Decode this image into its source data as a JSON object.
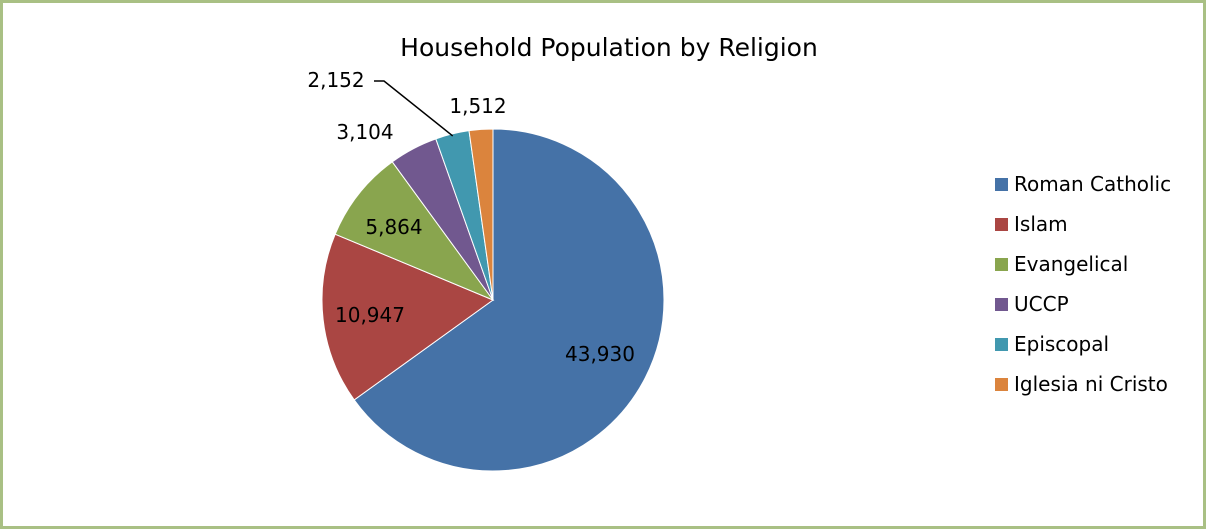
{
  "chart_data": {
    "type": "pie",
    "title": "Household Population by Religion",
    "slices": [
      {
        "name": "Roman Catholic",
        "value": 43930,
        "label": "43,930",
        "color": "#4572a7"
      },
      {
        "name": "Islam",
        "value": 10947,
        "label": "10,947",
        "color": "#aa4643"
      },
      {
        "name": "Evangelical",
        "value": 5864,
        "label": "5,864",
        "color": "#89a54e"
      },
      {
        "name": "UCCP",
        "value": 3104,
        "label": "3,104",
        "color": "#71588f"
      },
      {
        "name": "Episcopal",
        "value": 2152,
        "label": "2,152",
        "color": "#4198af"
      },
      {
        "name": "Iglesia ni Cristo",
        "value": 1512,
        "label": "1,512",
        "color": "#db843d"
      }
    ],
    "legend_position": "right"
  }
}
